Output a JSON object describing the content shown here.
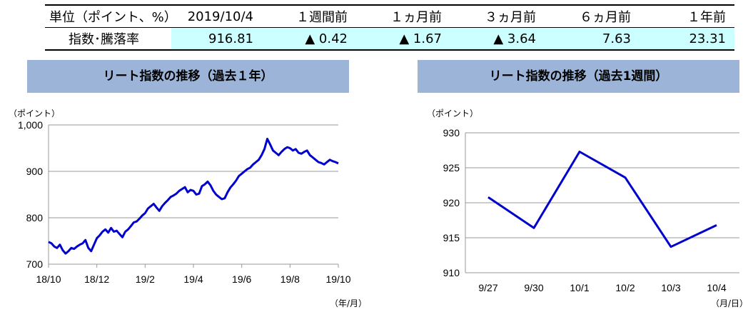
{
  "table": {
    "headers": [
      "単位（ポイント、%）",
      "2019/10/4",
      "１週間前",
      "１ヵ月前",
      "３ヵ月前",
      "６ヵ月前",
      "１年前"
    ],
    "row_label": "指数･騰落率",
    "values": [
      "916.81",
      "▲ 0.42",
      "▲ 1.67",
      "▲ 3.64",
      "7.63",
      "23.31"
    ]
  },
  "chart_data": [
    {
      "type": "line",
      "title": "リート指数の推移（過去１年）",
      "ylabel": "（ポイント）",
      "xlabel": "（年/月）",
      "ylim": [
        700,
        1000
      ],
      "yticks": [
        "700",
        "800",
        "900",
        "1,000"
      ],
      "xticks": [
        "18/10",
        "18/12",
        "19/2",
        "19/4",
        "19/6",
        "19/8",
        "19/10"
      ],
      "series": [
        {
          "color": "#0000cc",
          "values": [
            748,
            745,
            738,
            735,
            742,
            730,
            723,
            728,
            735,
            733,
            738,
            742,
            745,
            752,
            735,
            728,
            742,
            756,
            762,
            770,
            775,
            768,
            778,
            770,
            772,
            765,
            758,
            770,
            775,
            782,
            790,
            792,
            798,
            805,
            810,
            820,
            825,
            830,
            822,
            815,
            825,
            832,
            838,
            845,
            848,
            852,
            858,
            862,
            866,
            855,
            860,
            858,
            850,
            852,
            868,
            872,
            878,
            870,
            858,
            850,
            845,
            840,
            842,
            855,
            865,
            872,
            880,
            890,
            895,
            900,
            905,
            908,
            915,
            920,
            925,
            935,
            948,
            970,
            958,
            945,
            940,
            935,
            942,
            948,
            952,
            950,
            945,
            948,
            940,
            938,
            942,
            945,
            935,
            930,
            925,
            920,
            918,
            915,
            920,
            925,
            922,
            920,
            917
          ]
        }
      ]
    },
    {
      "type": "line",
      "title": "リート指数の推移（過去1週間）",
      "ylabel": "（ポイント）",
      "xlabel": "（月/日）",
      "ylim": [
        910,
        930
      ],
      "yticks": [
        "910",
        "915",
        "920",
        "925",
        "930"
      ],
      "categories": [
        "9/27",
        "9/30",
        "10/1",
        "10/2",
        "10/3",
        "10/4"
      ],
      "series": [
        {
          "color": "#0000cc",
          "values": [
            920.8,
            916.4,
            927.3,
            923.6,
            913.7,
            916.8
          ]
        }
      ]
    }
  ]
}
